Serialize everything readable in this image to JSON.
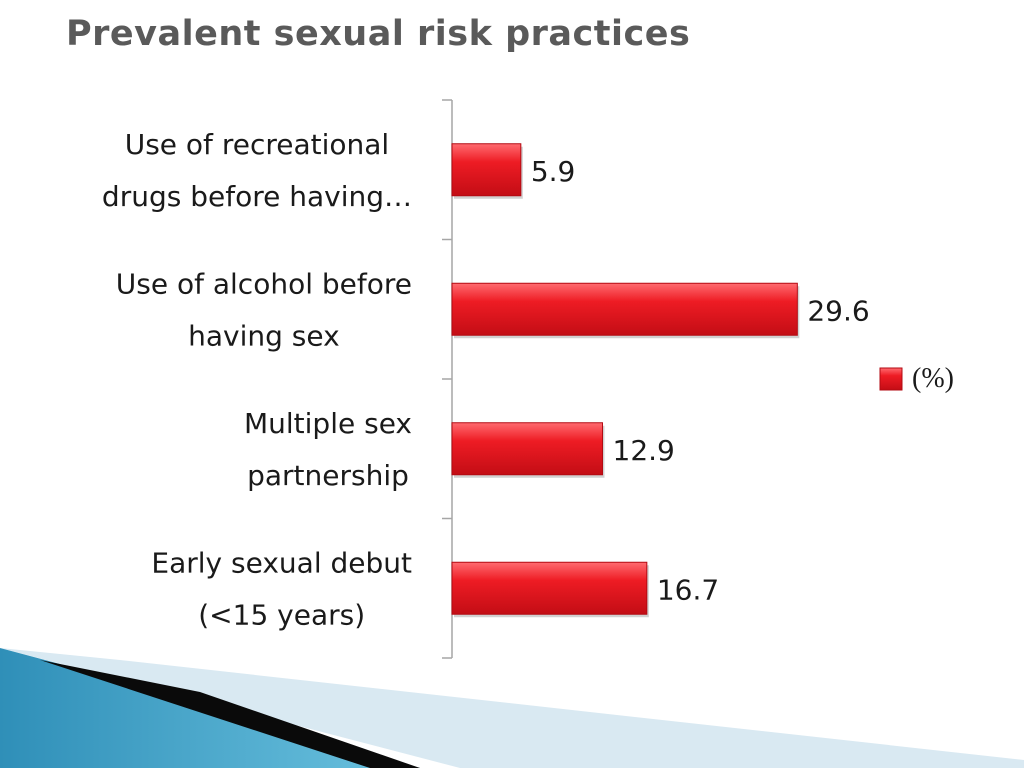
{
  "slide": {
    "title": "Prevalent sexual risk practices"
  },
  "chart_data": {
    "type": "bar",
    "orientation": "horizontal",
    "categories": [
      [
        "Use of recreational",
        "drugs before having…"
      ],
      [
        "Use of alcohol before",
        "having sex"
      ],
      [
        "Multiple sex",
        "partnership"
      ],
      [
        "Early sexual debut",
        "(<15 years)"
      ]
    ],
    "series": [
      {
        "name": "(%)",
        "values": [
          5.9,
          29.6,
          12.9,
          16.7
        ],
        "color": "#e8141c"
      }
    ],
    "value_labels": [
      "5.9",
      "29.6",
      "12.9",
      "16.7"
    ],
    "xlim": [
      0,
      36
    ],
    "grid": false,
    "legend_position": "right"
  },
  "colors": {
    "bar": "#e8141c",
    "bar_highlight": "#ff5a5f",
    "bar_shadow": "#b00b12",
    "axis": "#a6a6a6",
    "decor_blue": "#3fa3c9",
    "decor_light": "#cfe3ee",
    "decor_black": "#0a0a0a"
  }
}
